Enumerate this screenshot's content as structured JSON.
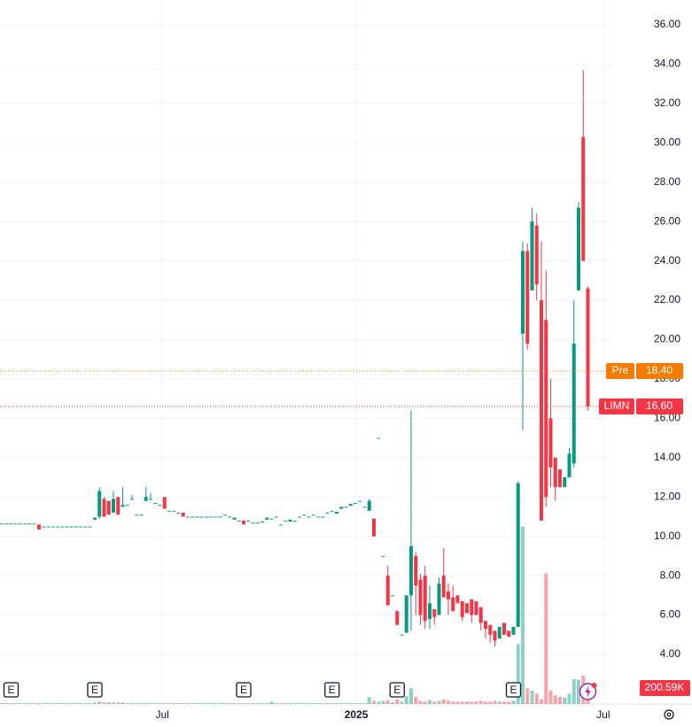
{
  "chart_data": {
    "type": "candlestick",
    "open": [
      10.65,
      10.65,
      10.65,
      10.65,
      10.65,
      10.65,
      10.65,
      10.65,
      10.6,
      10.5,
      10.5,
      10.5,
      10.5,
      10.5,
      10.5,
      10.5,
      10.5,
      10.5,
      10.5,
      10.5,
      10.85,
      11.0,
      11.9,
      11.8,
      11.2,
      12.0,
      11.5,
      11.6,
      11.9,
      11.1,
      11.1,
      11.8,
      11.9,
      11.7,
      11.6,
      12.0,
      11.3,
      11.3,
      11.2,
      11.2,
      11.0,
      11.0,
      11.0,
      11.0,
      11.0,
      11.0,
      11.0,
      11.0,
      11.1,
      11.0,
      10.85,
      10.8,
      10.8,
      10.8,
      10.7,
      10.7,
      10.75,
      10.85,
      10.9,
      11.0,
      10.6,
      10.8,
      10.75,
      10.8,
      11.0,
      11.1,
      11.0,
      11.1,
      11.0,
      11.0,
      11.2,
      11.3,
      11.15,
      11.4,
      11.5,
      11.55,
      11.7,
      11.8,
      11.5,
      11.3,
      10.9,
      15.0,
      9.0,
      8.0,
      7.0,
      6.2,
      5.0,
      5.1,
      7.0,
      9.0,
      7.8,
      8.0,
      5.8,
      6.3,
      6.0,
      8.0,
      7.2,
      6.9,
      7.0,
      6.7,
      6.6,
      6.8,
      6.7,
      6.4,
      5.7,
      5.5,
      5.2,
      4.8,
      5.6,
      5.2,
      5.0,
      5.4,
      20.3,
      24.5,
      22.5,
      25.8,
      22.0,
      21.0,
      16.0,
      14.0,
      13.4,
      12.5,
      13.0,
      13.7,
      22.5,
      30.3,
      22.6
    ],
    "high": [
      10.65,
      10.65,
      10.65,
      10.65,
      10.65,
      10.65,
      10.65,
      10.65,
      10.6,
      10.5,
      10.5,
      10.5,
      10.5,
      10.5,
      10.5,
      10.5,
      10.5,
      10.5,
      10.5,
      10.5,
      10.95,
      12.5,
      12.0,
      11.8,
      12.3,
      12.0,
      12.5,
      11.6,
      12.1,
      11.1,
      11.1,
      12.5,
      12.2,
      11.7,
      11.6,
      12.0,
      11.3,
      11.3,
      11.2,
      11.2,
      11.0,
      11.0,
      11.0,
      11.0,
      11.0,
      11.0,
      11.0,
      11.0,
      11.1,
      11.0,
      10.95,
      10.8,
      10.8,
      10.8,
      10.7,
      10.7,
      10.75,
      10.95,
      10.9,
      11.0,
      10.6,
      10.8,
      10.85,
      10.8,
      11.0,
      11.1,
      11.0,
      11.1,
      11.0,
      11.0,
      11.2,
      11.3,
      11.25,
      11.5,
      11.5,
      11.65,
      11.7,
      11.8,
      11.5,
      11.9,
      10.9,
      15.0,
      9.0,
      8.5,
      7.0,
      6.2,
      5.0,
      7.0,
      16.4,
      9.2,
      8.1,
      8.5,
      7.5,
      6.3,
      7.9,
      9.4,
      7.6,
      7.5,
      7.0,
      6.7,
      6.6,
      6.8,
      6.7,
      6.4,
      5.7,
      5.5,
      5.2,
      5.4,
      5.6,
      5.2,
      5.4,
      12.8,
      25.0,
      24.9,
      26.7,
      26.4,
      25.0,
      23.5,
      18.0,
      14.0,
      13.4,
      13.0,
      14.5,
      22.0,
      27.0,
      33.7,
      22.7
    ],
    "low": [
      10.65,
      10.65,
      10.65,
      10.65,
      10.65,
      10.65,
      10.65,
      10.65,
      10.35,
      10.5,
      10.5,
      10.5,
      10.5,
      10.5,
      10.5,
      10.5,
      10.5,
      10.5,
      10.5,
      10.5,
      10.85,
      10.9,
      11.0,
      11.1,
      11.2,
      11.1,
      11.5,
      11.6,
      11.9,
      11.1,
      11.1,
      11.8,
      11.9,
      11.7,
      11.6,
      11.4,
      11.3,
      11.3,
      11.2,
      11.0,
      11.0,
      11.0,
      11.0,
      11.0,
      11.0,
      11.0,
      11.0,
      11.0,
      11.1,
      11.0,
      10.85,
      10.8,
      10.6,
      10.8,
      10.7,
      10.7,
      10.75,
      10.85,
      10.9,
      11.0,
      10.6,
      10.8,
      10.75,
      10.8,
      11.0,
      11.1,
      11.0,
      11.1,
      11.0,
      11.0,
      11.2,
      11.3,
      11.15,
      11.4,
      11.5,
      11.55,
      11.7,
      11.8,
      11.5,
      11.3,
      10.0,
      15.0,
      9.0,
      6.5,
      7.0,
      5.5,
      5.0,
      5.1,
      5.2,
      6.0,
      5.5,
      5.3,
      5.3,
      5.5,
      6.0,
      6.9,
      6.0,
      6.2,
      6.6,
      5.7,
      6.1,
      5.6,
      6.0,
      5.2,
      4.8,
      4.6,
      4.4,
      4.8,
      5.0,
      4.9,
      5.0,
      5.4,
      15.4,
      19.5,
      22.5,
      22.0,
      10.8,
      11.5,
      12.5,
      11.8,
      12.5,
      12.5,
      13.0,
      13.5,
      22.5,
      24.0,
      16.4
    ],
    "close": [
      10.65,
      10.65,
      10.65,
      10.65,
      10.65,
      10.65,
      10.65,
      10.65,
      10.35,
      10.5,
      10.5,
      10.5,
      10.5,
      10.5,
      10.5,
      10.5,
      10.5,
      10.5,
      10.5,
      10.5,
      10.95,
      12.3,
      11.0,
      11.1,
      11.9,
      11.1,
      11.6,
      11.6,
      11.9,
      11.1,
      11.1,
      12.0,
      11.9,
      11.7,
      11.6,
      11.4,
      11.3,
      11.3,
      11.2,
      11.0,
      11.0,
      11.0,
      11.0,
      11.0,
      11.0,
      11.0,
      11.0,
      11.0,
      11.1,
      11.0,
      10.95,
      10.8,
      10.6,
      10.8,
      10.7,
      10.7,
      10.75,
      10.95,
      10.9,
      11.0,
      10.6,
      10.8,
      10.85,
      10.8,
      11.0,
      11.1,
      11.0,
      11.1,
      11.0,
      11.0,
      11.2,
      11.3,
      11.25,
      11.5,
      11.5,
      11.65,
      11.7,
      11.8,
      11.5,
      11.8,
      10.0,
      15.0,
      9.0,
      6.5,
      7.0,
      5.5,
      5.0,
      7.0,
      9.5,
      7.5,
      6.0,
      5.7,
      6.6,
      5.9,
      7.6,
      6.9,
      6.8,
      6.2,
      6.6,
      5.9,
      6.1,
      6.0,
      6.0,
      5.6,
      5.3,
      5.0,
      4.7,
      5.4,
      5.0,
      4.9,
      5.4,
      12.7,
      24.5,
      19.8,
      26.0,
      22.8,
      10.8,
      12.0,
      13.5,
      12.5,
      12.5,
      13.0,
      14.2,
      19.8,
      26.7,
      24.0,
      16.6
    ],
    "volume": [
      10000,
      10000,
      10000,
      10000,
      10000,
      10000,
      10000,
      10000,
      10000,
      10000,
      10000,
      10000,
      10000,
      10000,
      10000,
      10000,
      10000,
      10000,
      10000,
      10000,
      20000,
      30000,
      20000,
      20000,
      20000,
      20000,
      20000,
      10000,
      10000,
      10000,
      10000,
      10000,
      10000,
      10000,
      10000,
      10000,
      10000,
      10000,
      10000,
      10000,
      10000,
      10000,
      10000,
      10000,
      10000,
      10000,
      10000,
      10000,
      10000,
      10000,
      10000,
      10000,
      10000,
      10000,
      10000,
      10000,
      10000,
      10000,
      30000,
      10000,
      10000,
      10000,
      10000,
      10000,
      10000,
      10000,
      10000,
      10000,
      10000,
      10000,
      10000,
      10000,
      10000,
      10000,
      10000,
      10000,
      10000,
      10000,
      10000,
      90000,
      40000,
      30000,
      40000,
      50000,
      20000,
      60000,
      30000,
      100000,
      200000,
      90000,
      40000,
      30000,
      50000,
      30000,
      40000,
      60000,
      40000,
      30000,
      30000,
      30000,
      30000,
      30000,
      30000,
      40000,
      30000,
      30000,
      40000,
      30000,
      30000,
      30000,
      40000,
      760000,
      2250000,
      200000,
      170000,
      130000,
      60000,
      1660000,
      170000,
      110000,
      90000,
      80000,
      130000,
      315000,
      310000,
      360000,
      200590
    ],
    "volume_last_label": "200.59K",
    "volume_lim": [
      0,
      4500000
    ],
    "up_color": "#089981",
    "down_color": "#f23645",
    "xlim": [
      -0.38,
      131.05
    ],
    "xticks": [
      {
        "value": 34.5,
        "label": "Jul"
      },
      {
        "value": 76.2,
        "label": "2025"
      },
      {
        "value": 129.3,
        "label": "Jul"
      }
    ],
    "ylim": [
      1.48,
      37.26
    ],
    "yticks": [
      {
        "value": 4,
        "label": "4.00"
      },
      {
        "value": 6,
        "label": "6.00"
      },
      {
        "value": 8,
        "label": "8.00"
      },
      {
        "value": 10,
        "label": "10.00"
      },
      {
        "value": 12,
        "label": "12.00"
      },
      {
        "value": 14,
        "label": "14.00"
      },
      {
        "value": 16,
        "label": "16.00"
      },
      {
        "value": 18,
        "label": "18.00"
      },
      {
        "value": 20,
        "label": "20.00"
      },
      {
        "value": 22,
        "label": "22.00"
      },
      {
        "value": 24,
        "label": "24.00"
      },
      {
        "value": 26,
        "label": "26.00"
      },
      {
        "value": 28,
        "label": "28.00"
      },
      {
        "value": 30,
        "label": "30.00"
      },
      {
        "value": 32,
        "label": "32.00"
      },
      {
        "value": 34,
        "label": "34.00"
      },
      {
        "value": 36,
        "label": "36.00"
      }
    ],
    "grid": true,
    "price_lines": [
      {
        "name": "Pre",
        "value": 18.4,
        "label": "18.40",
        "color": "#f57c00"
      },
      {
        "name": "LIMN",
        "value": 16.6,
        "label": "16.60",
        "color": "#f23645"
      }
    ],
    "events": [
      {
        "x": 2,
        "label": "E"
      },
      {
        "x": 20,
        "label": "E"
      },
      {
        "x": 52,
        "label": "E"
      },
      {
        "x": 71,
        "label": "E"
      },
      {
        "x": 85,
        "label": "E"
      },
      {
        "x": 110,
        "label": "E"
      }
    ],
    "flash_event_x": 126
  }
}
